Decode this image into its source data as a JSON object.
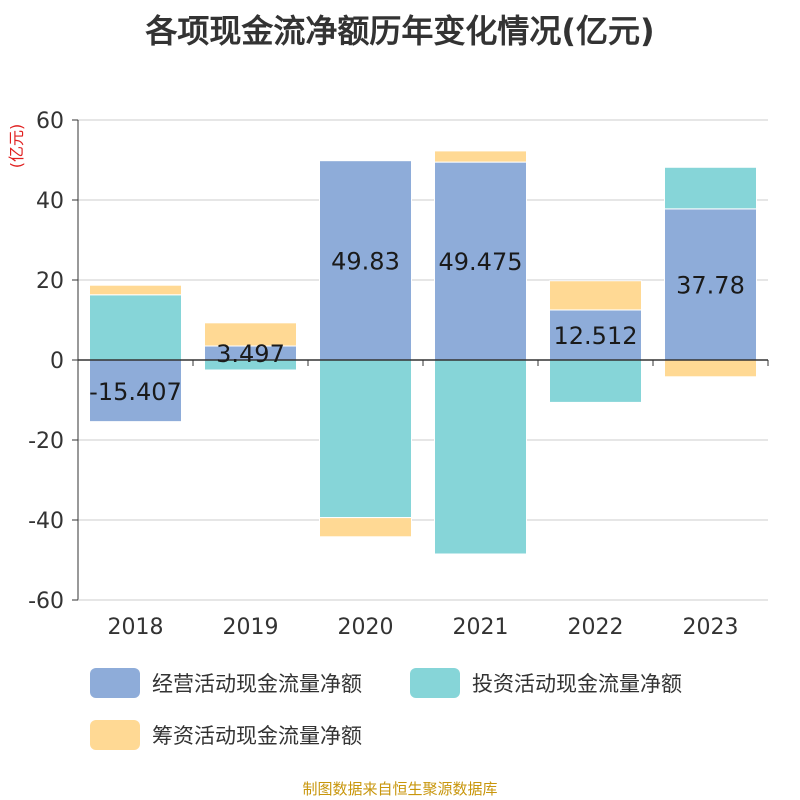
{
  "title": "各项现金流净额历年变化情况(亿元)",
  "footer": "制图数据来自恒生聚源数据库",
  "chart_data": {
    "type": "bar",
    "stacked": true,
    "categories": [
      "2018",
      "2019",
      "2020",
      "2021",
      "2022",
      "2023"
    ],
    "ylabel": "(亿元)",
    "ylim": [
      -60,
      60
    ],
    "yticks": [
      -60,
      -40,
      -20,
      0,
      20,
      40,
      60
    ],
    "grid": true,
    "legend_position": "bottom",
    "series": [
      {
        "name": "经营活动现金流量净额",
        "color": "#8eacd9",
        "values": [
          -15.407,
          3.497,
          49.83,
          49.475,
          12.512,
          37.78
        ],
        "labels": [
          "-15.407",
          "3.497",
          "49.83",
          "49.475",
          "12.512",
          "37.78"
        ]
      },
      {
        "name": "投资活动现金流量净额",
        "color": "#86d5d8",
        "values": [
          16.3,
          -2.5,
          -39.4,
          -48.5,
          -10.6,
          10.4
        ]
      },
      {
        "name": "筹资活动现金流量净额",
        "color": "#ffd994",
        "values": [
          2.4,
          5.8,
          -4.8,
          2.8,
          7.3,
          -4.2
        ]
      }
    ]
  }
}
